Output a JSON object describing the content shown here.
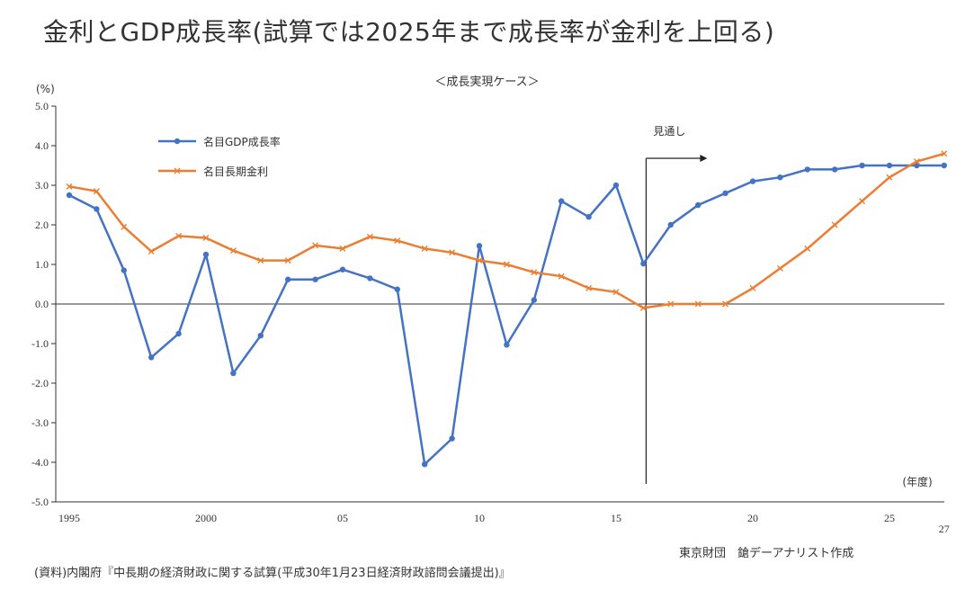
{
  "header": {
    "title": "金利とGDP成長率(試算では2025年まで成長率が金利を上回る)",
    "subtitle": "＜成長実現ケース＞",
    "unit": "(%)"
  },
  "footer": {
    "source": "(資料)内閣府『中長期の経済財政に関する試算(平成30年1月23日経済財政諮問会議提出)』",
    "credit": "東京財団　鎗デーアナリスト作成"
  },
  "chart_data": {
    "type": "line",
    "ylim": [
      -5.0,
      5.0
    ],
    "yticks": [
      "5.0",
      "4.0",
      "3.0",
      "2.0",
      "1.0",
      "0.0",
      "-1.0",
      "-2.0",
      "-3.0",
      "-4.0",
      "-5.0"
    ],
    "xlim": [
      1995,
      2027
    ],
    "xticks": [
      {
        "year": 1995,
        "label": "1995"
      },
      {
        "year": 2000,
        "label": "2000"
      },
      {
        "year": 2005,
        "label": "05"
      },
      {
        "year": 2010,
        "label": "10"
      },
      {
        "year": 2015,
        "label": "15"
      },
      {
        "year": 2020,
        "label": "20"
      },
      {
        "year": 2025,
        "label": "25"
      },
      {
        "year": 2027,
        "label": "27"
      }
    ],
    "x_unit_label": "(年度)",
    "x": [
      1995,
      1996,
      1997,
      1998,
      1999,
      2000,
      2001,
      2002,
      2003,
      2004,
      2005,
      2006,
      2007,
      2008,
      2009,
      2010,
      2011,
      2012,
      2013,
      2014,
      2015,
      2016,
      2017,
      2018,
      2019,
      2020,
      2021,
      2022,
      2023,
      2024,
      2025,
      2026,
      2027
    ],
    "series": [
      {
        "name": "名目GDP成長率",
        "color": "#4472C4",
        "marker": "dot",
        "values": [
          2.75,
          2.4,
          0.85,
          -1.35,
          -0.75,
          1.25,
          -1.75,
          -0.8,
          0.62,
          0.62,
          0.87,
          0.65,
          0.37,
          -4.05,
          -3.4,
          1.47,
          -1.03,
          0.1,
          2.6,
          2.2,
          3.0,
          1.02,
          2.0,
          2.5,
          2.8,
          3.1,
          3.2,
          3.4,
          3.4,
          3.5,
          3.5,
          3.5,
          3.5
        ]
      },
      {
        "name": "名目長期金利",
        "color": "#ED7D31",
        "marker": "x",
        "values": [
          2.97,
          2.85,
          1.95,
          1.33,
          1.72,
          1.67,
          1.35,
          1.1,
          1.1,
          1.48,
          1.4,
          1.7,
          1.6,
          1.4,
          1.3,
          1.1,
          1.0,
          0.8,
          0.7,
          0.4,
          0.3,
          -0.1,
          0.0,
          0.0,
          0.0,
          0.4,
          0.9,
          1.4,
          2.0,
          2.6,
          3.2,
          3.6,
          3.8
        ]
      }
    ],
    "annotation": {
      "label": "見通し",
      "x": 2016
    },
    "legend": "top-left",
    "grid": false
  }
}
